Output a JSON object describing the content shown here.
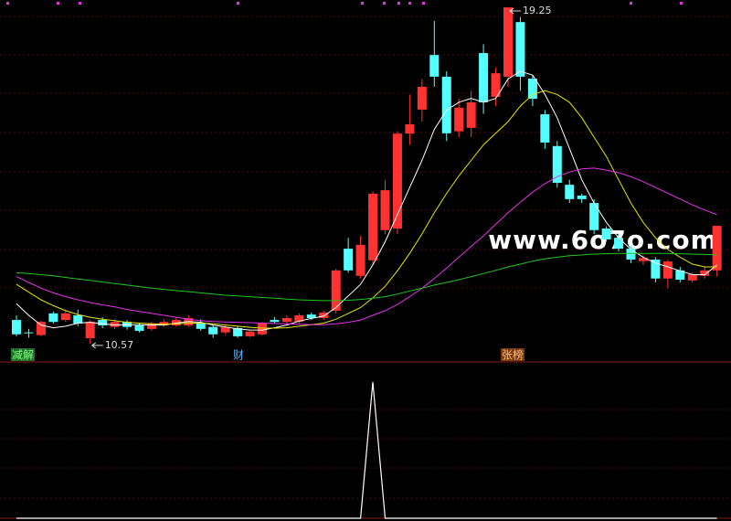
{
  "chart_data": [
    {
      "type": "candlestick",
      "open": [
        11.18,
        10.86,
        10.79,
        11.35,
        11.18,
        11.3,
        10.71,
        11.18,
        11.0,
        11.13,
        11.04,
        10.95,
        11.04,
        11.04,
        11.04,
        11.09,
        11.0,
        10.86,
        10.97,
        10.76,
        10.81,
        11.18,
        11.13,
        11.13,
        11.32,
        11.23,
        11.42,
        13.02,
        12.32,
        12.72,
        13.5,
        13.54,
        15.99,
        16.61,
        18.02,
        17.46,
        16.05,
        16.14,
        18.07,
        16.94,
        17.46,
        18.87,
        17.41,
        16.49,
        15.67,
        14.67,
        14.39,
        14.2,
        13.54,
        13.3,
        13.02,
        12.7,
        12.74,
        12.25,
        12.46,
        12.2,
        12.32,
        12.46
      ],
      "high": [
        11.3,
        10.95,
        11.16,
        11.4,
        11.45,
        11.45,
        11.18,
        11.25,
        11.2,
        11.18,
        11.09,
        11.13,
        11.2,
        11.25,
        11.3,
        11.2,
        11.04,
        11.04,
        11.02,
        10.9,
        11.13,
        11.25,
        11.3,
        11.35,
        11.37,
        11.42,
        12.5,
        13.3,
        13.35,
        14.5,
        14.8,
        16.05,
        17.0,
        17.4,
        18.9,
        17.6,
        16.9,
        17.1,
        18.3,
        17.7,
        19.25,
        19.0,
        17.5,
        16.6,
        15.8,
        14.8,
        14.44,
        14.3,
        13.6,
        13.4,
        13.1,
        12.85,
        12.8,
        12.74,
        12.55,
        12.4,
        12.55,
        13.61
      ],
      "low": [
        10.76,
        10.72,
        10.76,
        11.09,
        11.13,
        11.02,
        10.57,
        10.97,
        10.95,
        10.93,
        10.86,
        10.9,
        11.0,
        11.0,
        11.0,
        10.9,
        10.72,
        10.81,
        10.72,
        10.74,
        10.78,
        11.09,
        11.09,
        11.09,
        11.18,
        11.18,
        11.35,
        12.4,
        12.25,
        12.6,
        13.4,
        13.4,
        15.7,
        16.3,
        17.2,
        15.8,
        15.9,
        15.9,
        16.5,
        16.7,
        17.2,
        17.1,
        16.7,
        15.6,
        14.6,
        14.2,
        14.2,
        13.4,
        13.2,
        12.95,
        12.65,
        12.6,
        12.15,
        12.0,
        12.15,
        12.15,
        12.25,
        12.3
      ],
      "close": [
        10.81,
        10.84,
        11.13,
        11.13,
        11.35,
        11.09,
        11.13,
        11.04,
        11.13,
        11.0,
        10.9,
        11.09,
        11.13,
        11.18,
        11.23,
        10.95,
        10.81,
        11.0,
        10.76,
        10.88,
        11.09,
        11.13,
        11.23,
        11.3,
        11.23,
        11.37,
        12.46,
        12.46,
        13.12,
        14.44,
        14.53,
        15.99,
        16.23,
        17.2,
        17.46,
        16.0,
        16.66,
        16.8,
        16.8,
        17.55,
        19.25,
        17.46,
        16.89,
        15.76,
        14.72,
        14.3,
        14.3,
        13.5,
        13.26,
        13.02,
        12.74,
        12.78,
        12.25,
        12.69,
        12.22,
        12.36,
        12.46,
        13.61
      ],
      "up_color": "#ff3232",
      "down_color": "#54ffff",
      "series": [
        {
          "color": "#ffffff",
          "values": [
            11.6,
            11.3,
            11.05,
            10.98,
            11.02,
            11.1,
            11.12,
            11.08,
            11.05,
            11.06,
            11.06,
            11.05,
            11.05,
            11.1,
            11.14,
            11.12,
            11.05,
            11.0,
            10.95,
            10.92,
            10.92,
            10.98,
            11.05,
            11.15,
            11.22,
            11.28,
            11.5,
            11.8,
            12.1,
            12.6,
            13.2,
            13.9,
            14.6,
            15.3,
            16.1,
            16.6,
            16.8,
            16.9,
            16.8,
            16.9,
            17.4,
            17.6,
            17.5,
            17.0,
            16.4,
            15.6,
            14.8,
            14.2,
            13.7,
            13.3,
            13.0,
            12.8,
            12.65,
            12.55,
            12.45,
            12.35,
            12.35,
            12.6
          ]
        },
        {
          "color": "#e6e600",
          "values": [
            12.1,
            11.9,
            11.7,
            11.55,
            11.42,
            11.32,
            11.25,
            11.2,
            11.16,
            11.12,
            11.1,
            11.08,
            11.07,
            11.08,
            11.1,
            11.1,
            11.08,
            11.05,
            11.02,
            10.99,
            10.97,
            10.97,
            10.98,
            11.02,
            11.06,
            11.1,
            11.2,
            11.35,
            11.5,
            11.75,
            12.05,
            12.45,
            12.9,
            13.4,
            13.95,
            14.45,
            14.9,
            15.3,
            15.7,
            16.0,
            16.3,
            16.7,
            17.0,
            17.1,
            17.0,
            16.8,
            16.4,
            15.9,
            15.4,
            14.8,
            14.2,
            13.7,
            13.3,
            13.0,
            12.8,
            12.62,
            12.55,
            12.55
          ]
        },
        {
          "color": "#e632e6",
          "values": [
            12.3,
            12.15,
            12.0,
            11.88,
            11.78,
            11.7,
            11.63,
            11.57,
            11.52,
            11.45,
            11.4,
            11.35,
            11.3,
            11.25,
            11.2,
            11.16,
            11.14,
            11.13,
            11.12,
            11.11,
            11.1,
            11.09,
            11.08,
            11.07,
            11.06,
            11.06,
            11.08,
            11.12,
            11.18,
            11.3,
            11.42,
            11.58,
            11.78,
            12.0,
            12.25,
            12.52,
            12.8,
            13.08,
            13.35,
            13.65,
            13.95,
            14.22,
            14.48,
            14.7,
            14.88,
            15.0,
            15.08,
            15.1,
            15.05,
            14.98,
            14.88,
            14.75,
            14.6,
            14.45,
            14.3,
            14.15,
            14.02,
            13.9
          ]
        },
        {
          "color": "#1ec81e",
          "values": [
            12.4,
            12.38,
            12.35,
            12.32,
            12.28,
            12.24,
            12.2,
            12.16,
            12.12,
            12.08,
            12.04,
            12.0,
            11.97,
            11.94,
            11.91,
            11.88,
            11.85,
            11.82,
            11.8,
            11.78,
            11.76,
            11.74,
            11.72,
            11.7,
            11.69,
            11.68,
            11.68,
            11.69,
            11.71,
            11.74,
            11.78,
            11.85,
            11.93,
            12.0,
            12.08,
            12.15,
            12.22,
            12.3,
            12.38,
            12.46,
            12.55,
            12.62,
            12.7,
            12.76,
            12.8,
            12.84,
            12.86,
            12.88,
            12.89,
            12.9,
            12.9,
            12.9,
            12.9,
            12.9,
            12.89,
            12.88,
            12.87,
            12.86
          ]
        }
      ],
      "ylim": [
        10.12,
        19.44
      ],
      "tags": [
        "减解",
        "财",
        "张榜"
      ],
      "watermark": "www.6o7o.com"
    },
    {
      "type": "line",
      "series": [
        {
          "color": "#ffffff",
          "values": [
            0,
            0,
            0,
            0,
            0,
            0,
            0,
            0,
            0,
            0,
            0,
            0,
            0,
            0,
            0,
            0,
            0,
            0,
            0,
            0,
            0,
            0,
            0,
            0,
            0,
            0,
            0,
            0,
            0,
            1,
            0,
            0,
            0,
            0,
            0,
            0,
            0,
            0,
            0,
            0,
            0,
            0,
            0,
            0,
            0,
            0,
            0,
            0,
            0,
            0,
            0,
            0,
            0,
            0,
            0,
            0,
            0,
            0
          ]
        }
      ],
      "ylim": [
        0,
        1
      ]
    }
  ]
}
